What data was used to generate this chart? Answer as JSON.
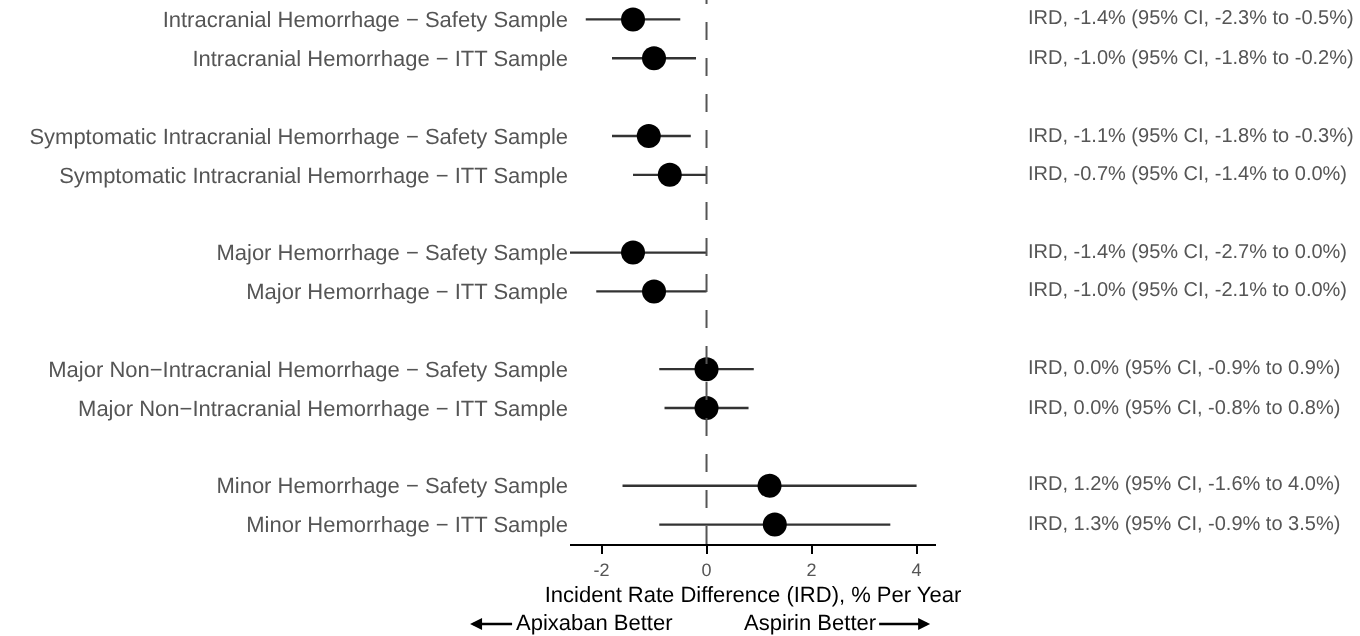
{
  "chart_data": {
    "type": "scatter",
    "orientation": "horizontal",
    "categories": [
      "Intracranial Hemorrhage − Safety Sample",
      "Intracranial Hemorrhage − ITT Sample",
      null,
      "Symptomatic Intracranial Hemorrhage − Safety Sample",
      "Symptomatic Intracranial Hemorrhage − ITT Sample",
      null,
      "Major Hemorrhage − Safety Sample",
      "Major Hemorrhage − ITT Sample",
      null,
      "Major Non−Intracranial Hemorrhage − Safety Sample",
      "Major Non−Intracranial Hemorrhage − ITT Sample",
      null,
      "Minor Hemorrhage − Safety Sample",
      "Minor Hemorrhage − ITT Sample"
    ],
    "series": [
      {
        "color": "#000000",
        "values": [
          -1.4,
          -1.0,
          null,
          -1.1,
          -0.7,
          null,
          -1.4,
          -1.0,
          null,
          0.0,
          0.0,
          null,
          1.2,
          1.3
        ],
        "errors": [
          [
            -2.3,
            -0.5
          ],
          [
            -1.8,
            -0.2
          ],
          null,
          [
            -1.8,
            -0.3
          ],
          [
            -1.4,
            0.0
          ],
          null,
          [
            -2.7,
            0.0
          ],
          [
            -2.1,
            0.0
          ],
          null,
          [
            -0.9,
            0.9
          ],
          [
            -0.8,
            0.8
          ],
          null,
          [
            -1.6,
            4.0
          ],
          [
            -0.9,
            3.5
          ]
        ],
        "value_labels": [
          "IRD, -1.4% (95% CI, -2.3% to -0.5%)",
          "IRD, -1.0% (95% CI, -1.8% to -0.2%)",
          null,
          "IRD, -1.1% (95% CI, -1.8% to -0.3%)",
          "IRD, -0.7% (95% CI, -1.4% to 0.0%)",
          null,
          "IRD, -1.4% (95% CI, -2.7% to 0.0%)",
          "IRD, -1.0% (95% CI, -2.1% to 0.0%)",
          null,
          "IRD, 0.0% (95% CI, -0.9% to 0.9%)",
          "IRD, 0.0% (95% CI, -0.8% to 0.8%)",
          null,
          "IRD, 1.2% (95% CI, -1.6% to 4.0%)",
          "IRD, 1.3% (95% CI, -0.9% to 3.5%)"
        ]
      }
    ],
    "xlabel": "Incident Rate Difference (IRD), % Per Year",
    "xlim": [
      -2.6,
      4.37
    ],
    "xticks": [
      -2,
      0,
      2,
      4
    ],
    "ref_lines": [
      {
        "axis": "x",
        "value": 0,
        "color": "#555555",
        "line_style": "dashed"
      }
    ],
    "marker": "circle",
    "annotations": [
      "Apixaban Better",
      "Aspirin Better"
    ]
  }
}
